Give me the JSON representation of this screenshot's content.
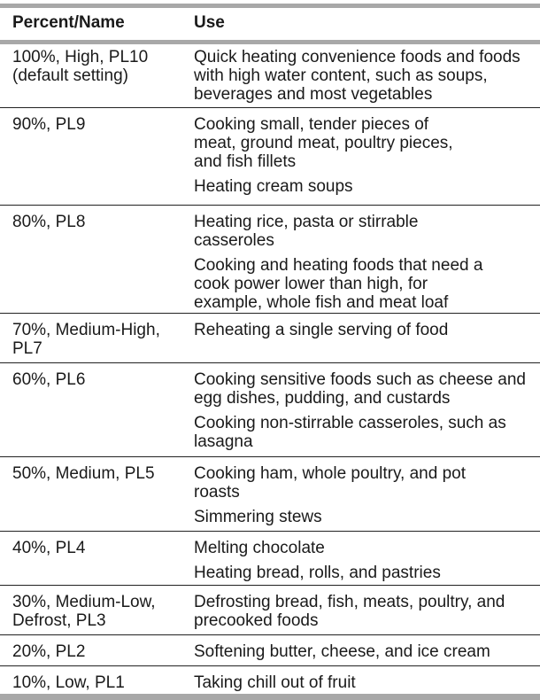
{
  "header": {
    "col1": "Percent/Name",
    "col2": "Use"
  },
  "rows": [
    {
      "name": "100%, High, PL10\n(default setting)",
      "uses": [
        "Quick heating convenience foods and foods with high water content, such as soups, beverages and most vegetables"
      ]
    },
    {
      "name": "90%, PL9",
      "uses": [
        "Cooking small, tender pieces of meat, ground meat, poultry pieces, and fish fillets",
        "Heating cream soups"
      ]
    },
    {
      "name": "80%, PL8",
      "uses": [
        "Heating rice, pasta or stirrable casseroles",
        "Cooking and heating foods that need a cook power lower than high, for example, whole fish and meat loaf"
      ]
    },
    {
      "name": "70%, Medium-High, PL7",
      "uses": [
        "Reheating a single serving of food"
      ]
    },
    {
      "name": "60%, PL6",
      "uses": [
        "Cooking sensitive foods such as cheese and egg dishes, pudding, and custards",
        "Cooking non-stirrable casseroles, such as lasagna"
      ]
    },
    {
      "name": "50%, Medium, PL5",
      "uses": [
        "Cooking ham, whole poultry, and pot roasts",
        "Simmering stews"
      ]
    },
    {
      "name": "40%, PL4",
      "uses": [
        "Melting chocolate",
        "Heating bread, rolls, and pastries"
      ]
    },
    {
      "name": "30%, Medium-Low, Defrost, PL3",
      "uses": [
        "Defrosting bread, fish, meats, poultry, and precooked foods"
      ]
    },
    {
      "name": "20%, PL2",
      "uses": [
        "Softening butter, cheese, and ice cream"
      ]
    },
    {
      "name": "10%, Low, PL1",
      "uses": [
        "Taking chill out of fruit"
      ]
    }
  ]
}
